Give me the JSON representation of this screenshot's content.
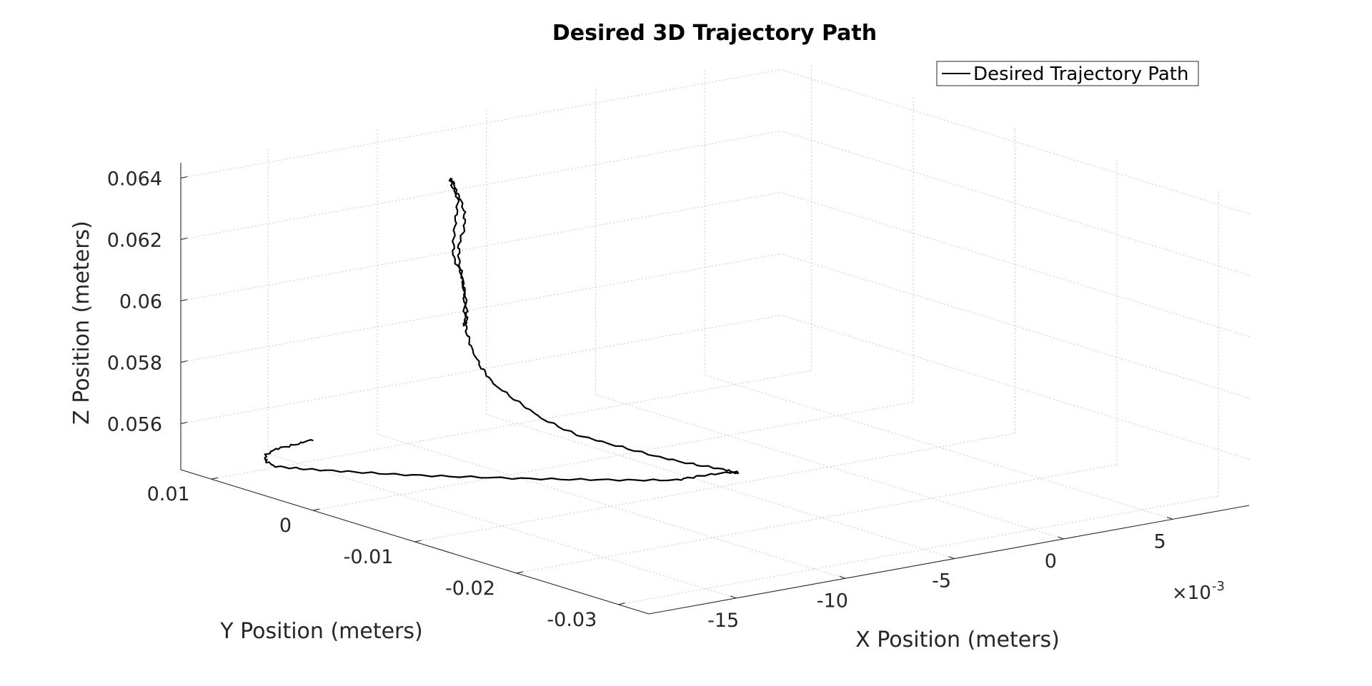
{
  "chart_data": {
    "type": "line",
    "title": "Desired 3D Trajectory Path",
    "xlabel": "X Position (meters)",
    "ylabel": "Y Position (meters)",
    "zlabel": "Z Position (meters)",
    "x_exponent_base": "×10",
    "x_exponent_power": "-3",
    "xlim": [
      -0.019,
      0.0085
    ],
    "ylim": [
      -0.033,
      0.013
    ],
    "zlim": [
      0.0545,
      0.0645
    ],
    "x_ticks": [
      -15,
      -10,
      -5,
      0,
      5
    ],
    "x_tick_labels": [
      "-15",
      "-10",
      "-5",
      "0",
      "5"
    ],
    "y_ticks": [
      0.01,
      0,
      -0.01,
      -0.02,
      -0.03
    ],
    "y_tick_labels": [
      "0.01",
      "0",
      "-0.01",
      "-0.02",
      "-0.03"
    ],
    "z_ticks": [
      0.056,
      0.058,
      0.06,
      0.062,
      0.064
    ],
    "z_tick_labels": [
      "0.056",
      "0.058",
      "0.06",
      "0.062",
      "0.064"
    ],
    "grid": true,
    "legend": {
      "position": "top-right",
      "entries": [
        "Desired Trajectory Path"
      ]
    },
    "series": [
      {
        "name": "Desired Trajectory Path",
        "color": "#000000",
        "x": [
          -0.0138,
          -0.0148,
          -0.0158,
          -0.0166,
          -0.0172,
          -0.0174,
          -0.0168,
          -0.0158,
          -0.0147,
          -0.0133,
          -0.0117,
          -0.0101,
          -0.0085,
          -0.0071,
          -0.0063,
          -0.0054,
          -0.0052,
          -0.0056,
          -0.0063,
          -0.0072,
          -0.0082,
          -0.0092,
          -0.0101,
          -0.0107,
          -0.0114,
          -0.0117,
          -0.012,
          -0.0122,
          -0.0123,
          -0.0123,
          -0.0124,
          -0.0126,
          -0.0126,
          -0.0123,
          -0.0123,
          -0.0125,
          -0.0129,
          -0.013,
          -0.0128,
          -0.0126,
          -0.0127,
          -0.0128,
          -0.0128,
          -0.0124,
          -0.0122,
          -0.0121,
          -0.0121,
          -0.0123
        ],
        "y": [
          0.0112,
          0.0108,
          0.0106,
          0.0098,
          0.0085,
          0.0072,
          0.0055,
          0.0035,
          0.0012,
          -0.0012,
          -0.0038,
          -0.0062,
          -0.0084,
          -0.0102,
          -0.0108,
          -0.0118,
          -0.0122,
          -0.0116,
          -0.01,
          -0.0082,
          -0.0065,
          -0.0048,
          -0.0034,
          -0.0024,
          -0.0014,
          -0.0009,
          -0.0006,
          -0.0005,
          -0.0005,
          -0.0005,
          -0.0005,
          -0.0006,
          -0.0006,
          -0.0005,
          -0.0005,
          -0.0005,
          -0.0006,
          -0.0006,
          -0.0006,
          -0.0005,
          -0.0005,
          -0.0005,
          -0.0005,
          -0.0004,
          -0.0003,
          -0.0003,
          -0.0003,
          -0.0004
        ],
        "z": [
          0.055,
          0.055,
          0.055,
          0.055,
          0.055,
          0.055,
          0.055,
          0.055,
          0.055,
          0.055,
          0.055,
          0.055,
          0.055,
          0.055,
          0.0551,
          0.0552,
          0.0552,
          0.0553,
          0.0554,
          0.0556,
          0.0559,
          0.0562,
          0.0567,
          0.0572,
          0.0578,
          0.0583,
          0.0589,
          0.0595,
          0.0601,
          0.0607,
          0.0613,
          0.0619,
          0.0624,
          0.0629,
          0.0634,
          0.0639,
          0.0643,
          0.0646,
          0.0644,
          0.0638,
          0.0632,
          0.0626,
          0.062,
          0.0614,
          0.0608,
          0.0602,
          0.0598,
          0.0597
        ]
      }
    ]
  }
}
